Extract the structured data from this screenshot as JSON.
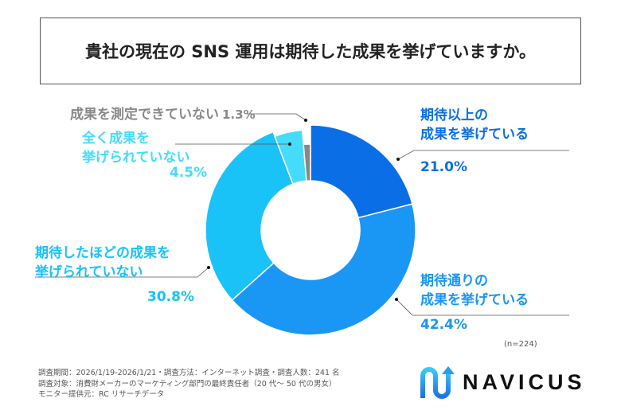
{
  "title": "貴社の現在の SNS 運用は期待した成果を挙げていますか。",
  "chart_data": {
    "type": "pie",
    "donut": true,
    "title": "貴社の現在の SNS 運用は期待した成果を挙げていますか。",
    "categories": [
      "期待以上の成果を挙げている",
      "期待通りの成果を挙げている",
      "期待したほどの成果を挙げられていない",
      "全く成果を挙げられていない",
      "成果を測定できていない"
    ],
    "values": [
      21.0,
      42.4,
      30.8,
      4.5,
      1.3
    ],
    "value_labels": [
      "21.0%",
      "42.4%",
      "30.8%",
      "4.5%",
      "1.3%"
    ],
    "label_lines": [
      [
        "期待以上の",
        "成果を挙げている"
      ],
      [
        "期待通りの",
        "成果を挙げている"
      ],
      [
        "期待したほどの成果を",
        "挙げられていない"
      ],
      [
        "全く成果を",
        "挙げられていない"
      ],
      [
        "成果を測定できていない"
      ]
    ],
    "colors": [
      "#0a6fe6",
      "#1a96f5",
      "#19c2f7",
      "#45dcfb",
      "#888888"
    ],
    "label_colors": [
      "#0a6fe6",
      "#1a96f5",
      "#19c2f7",
      "#45dcfb",
      "#888888"
    ],
    "sample_note": "(n=224)"
  },
  "footer": {
    "lines": [
      "調査期間：2026/1/19-2026/1/21・調査方法：インターネット調査・調査人数：241 名",
      "調査対象：消費財メーカーのマーケティング部門の最終責任者（20 代～ 50 代の男女）",
      "モニター提供元：RC リサーチデータ"
    ]
  },
  "logo": {
    "text": "NAVICUS"
  }
}
